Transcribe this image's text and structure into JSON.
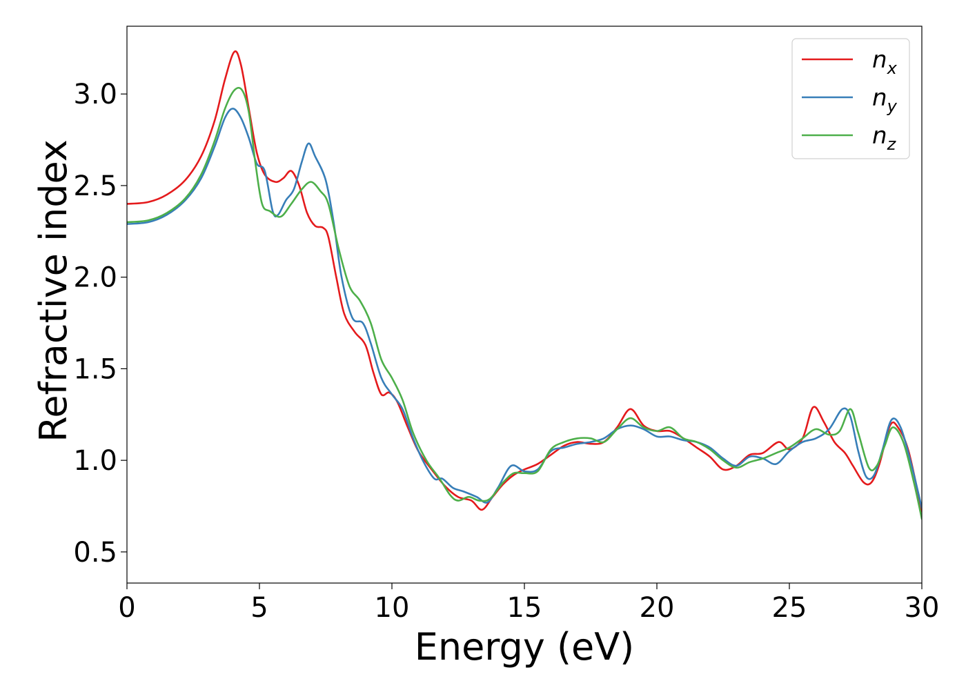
{
  "chart_data": {
    "type": "line",
    "xlabel": "Energy (eV)",
    "ylabel": "Refractive index",
    "xlim": [
      0,
      30
    ],
    "ylim": [
      0.33,
      3.37
    ],
    "xticks": [
      0,
      5,
      10,
      15,
      20,
      25,
      30
    ],
    "yticks": [
      0.5,
      1.0,
      1.5,
      2.0,
      2.5,
      3.0
    ],
    "xtick_labels": [
      "0",
      "5",
      "10",
      "15",
      "20",
      "25",
      "30"
    ],
    "ytick_labels": [
      "0.5",
      "1.0",
      "1.5",
      "2.0",
      "2.5",
      "3.0"
    ],
    "grid": false,
    "legend_position": "top-right",
    "series": [
      {
        "name": "n",
        "subscript": "x",
        "color": "#e41a1c",
        "points": [
          [
            0,
            2.4
          ],
          [
            0.8,
            2.41
          ],
          [
            1.5,
            2.45
          ],
          [
            2.2,
            2.53
          ],
          [
            2.8,
            2.66
          ],
          [
            3.3,
            2.85
          ],
          [
            3.7,
            3.08
          ],
          [
            4.05,
            3.23
          ],
          [
            4.3,
            3.16
          ],
          [
            4.6,
            2.92
          ],
          [
            4.9,
            2.68
          ],
          [
            5.2,
            2.56
          ],
          [
            5.6,
            2.52
          ],
          [
            5.9,
            2.54
          ],
          [
            6.2,
            2.58
          ],
          [
            6.5,
            2.5
          ],
          [
            6.8,
            2.35
          ],
          [
            7.1,
            2.28
          ],
          [
            7.4,
            2.27
          ],
          [
            7.6,
            2.22
          ],
          [
            7.9,
            2.0
          ],
          [
            8.2,
            1.8
          ],
          [
            8.6,
            1.7
          ],
          [
            9.0,
            1.63
          ],
          [
            9.3,
            1.48
          ],
          [
            9.6,
            1.36
          ],
          [
            9.9,
            1.37
          ],
          [
            10.2,
            1.32
          ],
          [
            10.6,
            1.18
          ],
          [
            11.0,
            1.05
          ],
          [
            11.5,
            0.95
          ],
          [
            12.0,
            0.86
          ],
          [
            12.5,
            0.8
          ],
          [
            13.0,
            0.78
          ],
          [
            13.4,
            0.73
          ],
          [
            13.8,
            0.8
          ],
          [
            14.2,
            0.87
          ],
          [
            14.6,
            0.92
          ],
          [
            15.0,
            0.95
          ],
          [
            15.5,
            0.98
          ],
          [
            16.0,
            1.03
          ],
          [
            16.5,
            1.08
          ],
          [
            17.0,
            1.1
          ],
          [
            17.5,
            1.09
          ],
          [
            18.0,
            1.1
          ],
          [
            18.5,
            1.18
          ],
          [
            19.0,
            1.28
          ],
          [
            19.5,
            1.19
          ],
          [
            20.0,
            1.16
          ],
          [
            20.5,
            1.16
          ],
          [
            21.0,
            1.12
          ],
          [
            21.5,
            1.07
          ],
          [
            22.0,
            1.02
          ],
          [
            22.5,
            0.95
          ],
          [
            23.0,
            0.97
          ],
          [
            23.5,
            1.03
          ],
          [
            24.0,
            1.04
          ],
          [
            24.6,
            1.1
          ],
          [
            25.0,
            1.06
          ],
          [
            25.5,
            1.12
          ],
          [
            25.9,
            1.29
          ],
          [
            26.3,
            1.21
          ],
          [
            26.7,
            1.1
          ],
          [
            27.1,
            1.04
          ],
          [
            27.4,
            0.97
          ],
          [
            27.8,
            0.88
          ],
          [
            28.1,
            0.88
          ],
          [
            28.4,
            0.98
          ],
          [
            28.8,
            1.19
          ],
          [
            29.1,
            1.18
          ],
          [
            29.5,
            1.05
          ],
          [
            30.0,
            0.72
          ]
        ]
      },
      {
        "name": "n",
        "subscript": "y",
        "color": "#377eb8",
        "points": [
          [
            0,
            2.29
          ],
          [
            0.8,
            2.3
          ],
          [
            1.5,
            2.34
          ],
          [
            2.2,
            2.42
          ],
          [
            2.8,
            2.54
          ],
          [
            3.3,
            2.71
          ],
          [
            3.7,
            2.87
          ],
          [
            4.0,
            2.92
          ],
          [
            4.3,
            2.87
          ],
          [
            4.6,
            2.76
          ],
          [
            4.9,
            2.62
          ],
          [
            5.2,
            2.58
          ],
          [
            5.5,
            2.36
          ],
          [
            5.7,
            2.34
          ],
          [
            6.0,
            2.42
          ],
          [
            6.3,
            2.48
          ],
          [
            6.6,
            2.63
          ],
          [
            6.85,
            2.73
          ],
          [
            7.1,
            2.66
          ],
          [
            7.5,
            2.53
          ],
          [
            7.8,
            2.3
          ],
          [
            8.1,
            2.0
          ],
          [
            8.5,
            1.78
          ],
          [
            8.9,
            1.75
          ],
          [
            9.2,
            1.64
          ],
          [
            9.6,
            1.45
          ],
          [
            10.0,
            1.36
          ],
          [
            10.4,
            1.28
          ],
          [
            10.8,
            1.12
          ],
          [
            11.2,
            0.99
          ],
          [
            11.6,
            0.9
          ],
          [
            11.9,
            0.9
          ],
          [
            12.3,
            0.85
          ],
          [
            12.7,
            0.83
          ],
          [
            13.2,
            0.8
          ],
          [
            13.6,
            0.77
          ],
          [
            14.0,
            0.85
          ],
          [
            14.5,
            0.97
          ],
          [
            15.0,
            0.94
          ],
          [
            15.5,
            0.95
          ],
          [
            16.0,
            1.05
          ],
          [
            16.5,
            1.07
          ],
          [
            17.0,
            1.09
          ],
          [
            17.5,
            1.1
          ],
          [
            18.0,
            1.12
          ],
          [
            18.5,
            1.17
          ],
          [
            19.0,
            1.19
          ],
          [
            19.5,
            1.17
          ],
          [
            20.0,
            1.13
          ],
          [
            20.5,
            1.13
          ],
          [
            21.0,
            1.11
          ],
          [
            21.5,
            1.1
          ],
          [
            22.0,
            1.07
          ],
          [
            22.5,
            1.01
          ],
          [
            23.0,
            0.97
          ],
          [
            23.5,
            1.02
          ],
          [
            24.0,
            1.01
          ],
          [
            24.5,
            0.98
          ],
          [
            25.0,
            1.05
          ],
          [
            25.5,
            1.1
          ],
          [
            26.0,
            1.12
          ],
          [
            26.5,
            1.17
          ],
          [
            27.0,
            1.28
          ],
          [
            27.3,
            1.24
          ],
          [
            27.6,
            1.05
          ],
          [
            27.9,
            0.91
          ],
          [
            28.2,
            0.92
          ],
          [
            28.5,
            1.05
          ],
          [
            28.85,
            1.22
          ],
          [
            29.2,
            1.18
          ],
          [
            29.6,
            0.98
          ],
          [
            30.0,
            0.74
          ]
        ]
      },
      {
        "name": "n",
        "subscript": "z",
        "color": "#4daf4a",
        "points": [
          [
            0,
            2.3
          ],
          [
            0.8,
            2.31
          ],
          [
            1.5,
            2.35
          ],
          [
            2.2,
            2.43
          ],
          [
            2.8,
            2.56
          ],
          [
            3.3,
            2.74
          ],
          [
            3.7,
            2.92
          ],
          [
            4.05,
            3.02
          ],
          [
            4.35,
            3.02
          ],
          [
            4.6,
            2.9
          ],
          [
            4.85,
            2.62
          ],
          [
            5.1,
            2.4
          ],
          [
            5.4,
            2.36
          ],
          [
            5.8,
            2.33
          ],
          [
            6.2,
            2.4
          ],
          [
            6.6,
            2.48
          ],
          [
            6.95,
            2.52
          ],
          [
            7.3,
            2.47
          ],
          [
            7.6,
            2.4
          ],
          [
            8.0,
            2.15
          ],
          [
            8.4,
            1.95
          ],
          [
            8.8,
            1.87
          ],
          [
            9.2,
            1.75
          ],
          [
            9.6,
            1.55
          ],
          [
            10.0,
            1.45
          ],
          [
            10.4,
            1.33
          ],
          [
            10.8,
            1.15
          ],
          [
            11.3,
            1.0
          ],
          [
            11.8,
            0.9
          ],
          [
            12.2,
            0.81
          ],
          [
            12.5,
            0.78
          ],
          [
            12.9,
            0.8
          ],
          [
            13.3,
            0.78
          ],
          [
            13.7,
            0.79
          ],
          [
            14.2,
            0.88
          ],
          [
            14.6,
            0.93
          ],
          [
            15.0,
            0.93
          ],
          [
            15.5,
            0.94
          ],
          [
            16.0,
            1.06
          ],
          [
            16.5,
            1.1
          ],
          [
            17.0,
            1.12
          ],
          [
            17.5,
            1.12
          ],
          [
            18.0,
            1.1
          ],
          [
            18.5,
            1.17
          ],
          [
            19.0,
            1.23
          ],
          [
            19.5,
            1.18
          ],
          [
            20.0,
            1.16
          ],
          [
            20.5,
            1.18
          ],
          [
            21.0,
            1.12
          ],
          [
            21.5,
            1.1
          ],
          [
            22.0,
            1.06
          ],
          [
            22.5,
            1.0
          ],
          [
            23.0,
            0.96
          ],
          [
            23.5,
            0.99
          ],
          [
            24.0,
            1.01
          ],
          [
            24.5,
            1.04
          ],
          [
            25.0,
            1.07
          ],
          [
            25.5,
            1.12
          ],
          [
            26.0,
            1.17
          ],
          [
            26.5,
            1.14
          ],
          [
            26.9,
            1.16
          ],
          [
            27.3,
            1.28
          ],
          [
            27.6,
            1.15
          ],
          [
            28.0,
            0.96
          ],
          [
            28.3,
            0.97
          ],
          [
            28.6,
            1.08
          ],
          [
            28.9,
            1.18
          ],
          [
            29.3,
            1.1
          ],
          [
            29.7,
            0.88
          ],
          [
            30.0,
            0.68
          ]
        ]
      }
    ]
  }
}
